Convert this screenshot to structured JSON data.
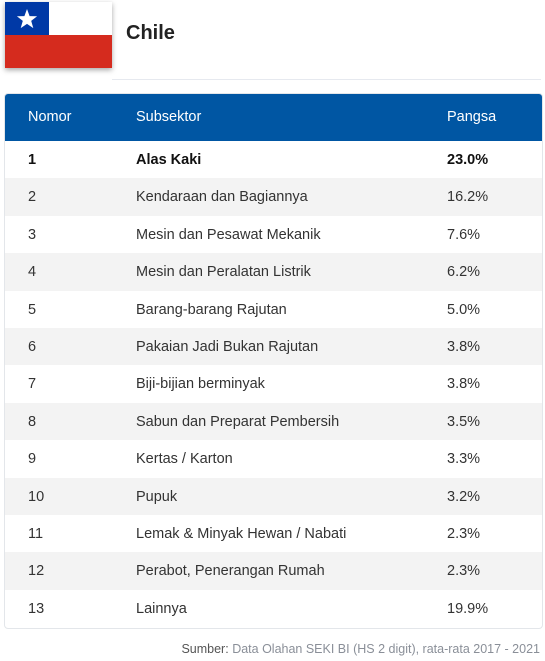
{
  "header": {
    "country": "Chile",
    "flag_colors": {
      "white": "#ffffff",
      "red": "#d52b1e",
      "blue": "#0039a6"
    }
  },
  "table": {
    "header_color": "#0056a3",
    "columns": [
      "Nomor",
      "Subsektor",
      "Pangsa"
    ],
    "rows": [
      {
        "no": "1",
        "subsector": "Alas Kaki",
        "share": "23.0%"
      },
      {
        "no": "2",
        "subsector": "Kendaraan dan Bagiannya",
        "share": "16.2%"
      },
      {
        "no": "3",
        "subsector": "Mesin dan Pesawat Mekanik",
        "share": "7.6%"
      },
      {
        "no": "4",
        "subsector": "Mesin dan Peralatan Listrik",
        "share": "6.2%"
      },
      {
        "no": "5",
        "subsector": "Barang-barang Rajutan",
        "share": "5.0%"
      },
      {
        "no": "6",
        "subsector": "Pakaian Jadi Bukan Rajutan",
        "share": "3.8%"
      },
      {
        "no": "7",
        "subsector": "Biji-bijian berminyak",
        "share": "3.8%"
      },
      {
        "no": "8",
        "subsector": "Sabun dan Preparat Pembersih",
        "share": "3.5%"
      },
      {
        "no": "9",
        "subsector": "Kertas / Karton",
        "share": "3.3%"
      },
      {
        "no": "10",
        "subsector": "Pupuk",
        "share": "3.2%"
      },
      {
        "no": "11",
        "subsector": "Lemak & Minyak Hewan / Nabati",
        "share": "2.3%"
      },
      {
        "no": "12",
        "subsector": "Perabot, Penerangan Rumah",
        "share": "2.3%"
      },
      {
        "no": "13",
        "subsector": "Lainnya",
        "share": "19.9%"
      }
    ]
  },
  "source": {
    "label": "Sumber:",
    "text": "Data Olahan SEKI BI (HS 2 digit), rata-rata 2017 - 2021"
  }
}
